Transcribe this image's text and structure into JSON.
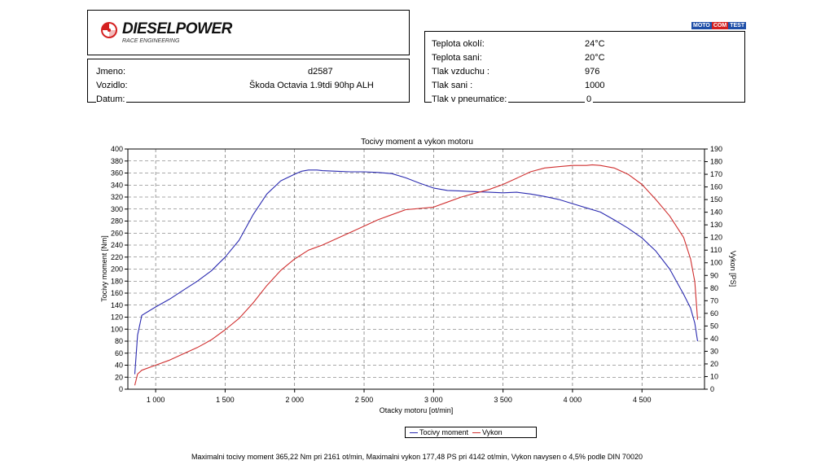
{
  "logo": {
    "name": "DIESELPOWER",
    "subtitle": "RACE ENGINEERING"
  },
  "badge": {
    "part1": "MOTO",
    "part2": "COM",
    "part3": "TEST"
  },
  "vehicle_info": {
    "name_label": "Jmeno:",
    "name_value": "d2587",
    "vehicle_label": "Vozidlo:",
    "vehicle_value": "Škoda Octavia 1.9tdi 90hp ALH",
    "date_label": "Datum:"
  },
  "conditions": [
    {
      "label": "Teplota okolí:",
      "value": "24°C"
    },
    {
      "label": "Teplota sani:",
      "value": "20°C"
    },
    {
      "label": "Tlak vzduchu :",
      "value": "976"
    },
    {
      "label": "Tlak sani :",
      "value": "1000"
    },
    {
      "label": "Tlak v pneumatice:",
      "value": "0"
    }
  ],
  "chart_data": {
    "type": "line",
    "title": "Tocivy moment a vykon motoru",
    "xlabel": "Otacky motoru [ot/min]",
    "ylabel_left": "Tocivy moment [Nm]",
    "ylabel_right": "Vykon [PS]",
    "xlim": [
      800,
      4950
    ],
    "ylim_left": [
      0,
      400
    ],
    "ylim_right": [
      0,
      190
    ],
    "x_ticks": [
      1000,
      1500,
      2000,
      2500,
      3000,
      3500,
      4000,
      4500
    ],
    "x_tick_labels": [
      "1 000",
      "1 500",
      "2 000",
      "2 500",
      "3 000",
      "3 500",
      "4 000",
      "4 500"
    ],
    "y_left_ticks": [
      0,
      20,
      40,
      60,
      80,
      100,
      120,
      140,
      160,
      180,
      200,
      220,
      240,
      260,
      280,
      300,
      320,
      340,
      360,
      380,
      400
    ],
    "y_right_ticks": [
      0,
      10,
      20,
      30,
      40,
      50,
      60,
      70,
      80,
      90,
      100,
      110,
      120,
      130,
      140,
      150,
      160,
      170,
      180,
      190
    ],
    "grid": true,
    "legend_position": "bottom-center",
    "series": [
      {
        "name": "Tocivy moment",
        "axis": "left",
        "color": "#2b2bb0",
        "x": [
          850,
          870,
          900,
          950,
          1000,
          1100,
          1200,
          1300,
          1400,
          1500,
          1600,
          1700,
          1800,
          1900,
          2000,
          2050,
          2100,
          2161,
          2200,
          2300,
          2400,
          2500,
          2600,
          2700,
          2800,
          2900,
          3000,
          3100,
          3200,
          3300,
          3400,
          3500,
          3600,
          3700,
          3800,
          3900,
          4000,
          4100,
          4200,
          4300,
          4400,
          4500,
          4600,
          4700,
          4800,
          4850,
          4880,
          4900
        ],
        "y": [
          25,
          90,
          123,
          130,
          137,
          150,
          165,
          180,
          197,
          220,
          248,
          290,
          325,
          347,
          358,
          363,
          365,
          365,
          364,
          363,
          362,
          362,
          361,
          359,
          352,
          343,
          335,
          331,
          330,
          329,
          328,
          327,
          328,
          325,
          321,
          316,
          309,
          302,
          295,
          282,
          268,
          252,
          230,
          200,
          158,
          135,
          110,
          80
        ]
      },
      {
        "name": "Vykon",
        "axis": "right",
        "color": "#d03030",
        "x": [
          850,
          870,
          900,
          1000,
          1100,
          1200,
          1300,
          1400,
          1500,
          1600,
          1700,
          1800,
          1900,
          2000,
          2100,
          2200,
          2300,
          2400,
          2500,
          2600,
          2700,
          2800,
          2900,
          3000,
          3100,
          3200,
          3300,
          3400,
          3500,
          3600,
          3700,
          3800,
          3900,
          4000,
          4100,
          4142,
          4200,
          4300,
          4400,
          4500,
          4600,
          4700,
          4800,
          4850,
          4880,
          4900
        ],
        "y": [
          3,
          12,
          15,
          19,
          23,
          28,
          33,
          39,
          47,
          56,
          68,
          82,
          94,
          103,
          110,
          114,
          119,
          124,
          129,
          134,
          138,
          142,
          143,
          144,
          148,
          152,
          155,
          158,
          162,
          167,
          172,
          175,
          176,
          177,
          177,
          177.5,
          177,
          175,
          170,
          162,
          150,
          137,
          120,
          103,
          85,
          55
        ]
      }
    ],
    "summary": "Maximalni tocivy moment 365,22 Nm pri 2161 ot/min,  Maximalni vykon 177,48 PS pri 4142 ot/min,  Vykon navysen o 4,5% podle DIN 70020"
  }
}
